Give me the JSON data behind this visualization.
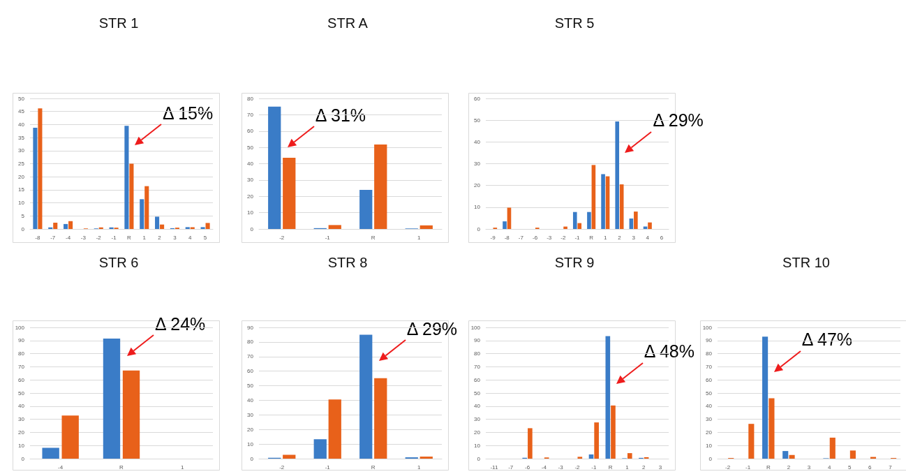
{
  "chart_data": [
    {
      "type": "bar",
      "title": "STR 1",
      "categories": [
        "-8",
        "-7",
        "-4",
        "-3",
        "-2",
        "-1",
        "R",
        "1",
        "2",
        "3",
        "4",
        "5"
      ],
      "series": [
        {
          "color": "#3a7cc7",
          "values": [
            38.8,
            0.6,
            1.9,
            0,
            0.2,
            0.6,
            39.5,
            11.4,
            4.7,
            0.3,
            0.7,
            0.7
          ]
        },
        {
          "color": "#e8611a",
          "values": [
            46.2,
            2.4,
            3.0,
            0.2,
            0.6,
            0.5,
            25,
            16.4,
            1.7,
            0.5,
            0.7,
            2.3
          ]
        }
      ],
      "ylim": [
        0,
        50
      ],
      "yticks": [
        0,
        5,
        10,
        15,
        20,
        25,
        30,
        35,
        40,
        45,
        50
      ],
      "grid": "y",
      "annotations": [
        {
          "text": "Δ 15%",
          "x": "R",
          "y": 32
        }
      ]
    },
    {
      "type": "bar",
      "title": "STR A",
      "categories": [
        "-2",
        "-1",
        "R",
        "1"
      ],
      "series": [
        {
          "color": "#3a7cc7",
          "values": [
            75,
            0.5,
            24,
            0.3
          ]
        },
        {
          "color": "#e8611a",
          "values": [
            43.6,
            2.4,
            51.8,
            2.2
          ]
        }
      ],
      "ylim": [
        0,
        80
      ],
      "yticks": [
        0,
        10,
        20,
        30,
        40,
        50,
        60,
        70,
        80
      ],
      "grid": "y",
      "annotations": [
        {
          "text": "Δ 31%",
          "x": "-2",
          "y": 50
        }
      ]
    },
    {
      "type": "bar",
      "title": "STR 5",
      "categories": [
        "-9",
        "-8",
        "-7",
        "-6",
        "-3",
        "-2",
        "-1",
        "R",
        "1",
        "2",
        "3",
        "4",
        "6"
      ],
      "series": [
        {
          "color": "#3a7cc7",
          "values": [
            0,
            3.5,
            0,
            0,
            0,
            0,
            7.8,
            7.8,
            25.2,
            49.4,
            4.8,
            1.1,
            0
          ]
        },
        {
          "color": "#e8611a",
          "values": [
            0.6,
            9.8,
            0,
            0.6,
            0,
            1.1,
            2.7,
            29.4,
            24.2,
            20.5,
            8,
            3,
            0
          ]
        }
      ],
      "ylim": [
        0,
        60
      ],
      "yticks": [
        0,
        10,
        20,
        30,
        40,
        50,
        60
      ],
      "grid": "y",
      "annotations": [
        {
          "text": "Δ 29%",
          "x": "2",
          "y": 35
        }
      ]
    },
    {
      "type": "bar",
      "title": "STR 6",
      "categories": [
        "-4",
        "R",
        "1"
      ],
      "series": [
        {
          "color": "#3a7cc7",
          "values": [
            8.3,
            91.5,
            0
          ]
        },
        {
          "color": "#e8611a",
          "values": [
            32.8,
            67.2,
            0
          ]
        }
      ],
      "ylim": [
        0,
        100
      ],
      "yticks": [
        0,
        10,
        20,
        30,
        40,
        50,
        60,
        70,
        80,
        90,
        100
      ],
      "grid": "y",
      "annotations": [
        {
          "text": "Δ 24%",
          "x": "R",
          "y": 78
        }
      ]
    },
    {
      "type": "bar",
      "title": "STR 8",
      "categories": [
        "-2",
        "-1",
        "R",
        "1"
      ],
      "series": [
        {
          "color": "#3a7cc7",
          "values": [
            0.6,
            13.3,
            85,
            0.9
          ]
        },
        {
          "color": "#e8611a",
          "values": [
            2.6,
            40.6,
            55.2,
            1.4
          ]
        }
      ],
      "ylim": [
        0,
        90
      ],
      "yticks": [
        0,
        10,
        20,
        30,
        40,
        50,
        60,
        70,
        80,
        90
      ],
      "grid": "y",
      "annotations": [
        {
          "text": "Δ 29%",
          "x": "R",
          "y": 67
        }
      ]
    },
    {
      "type": "bar",
      "title": "STR 9",
      "categories": [
        "-11",
        "-7",
        "-6",
        "-4",
        "-3",
        "-2",
        "-1",
        "R",
        "1",
        "2",
        "3"
      ],
      "series": [
        {
          "color": "#3a7cc7",
          "values": [
            0,
            0,
            0.6,
            0,
            0,
            0,
            3.2,
            93.4,
            0.3,
            0.6,
            0
          ]
        },
        {
          "color": "#e8611a",
          "values": [
            0,
            0,
            23.2,
            0.9,
            0,
            1.4,
            27.6,
            40.5,
            4.2,
            1.1,
            0
          ]
        }
      ],
      "ylim": [
        0,
        100
      ],
      "yticks": [
        0,
        10,
        20,
        30,
        40,
        50,
        60,
        70,
        80,
        90,
        100
      ],
      "grid": "y",
      "annotations": [
        {
          "text": "Δ 48%",
          "x": "R",
          "y": 57
        }
      ]
    },
    {
      "type": "bar",
      "title": "STR 10",
      "categories": [
        "-2",
        "-1",
        "R",
        "2",
        "3",
        "4",
        "5",
        "6",
        "7"
      ],
      "series": [
        {
          "color": "#3a7cc7",
          "values": [
            0,
            0,
            93,
            5.8,
            0,
            0.3,
            0,
            0,
            0
          ]
        },
        {
          "color": "#e8611a",
          "values": [
            0.5,
            26.5,
            46,
            2.8,
            0,
            16,
            6.2,
            1.3,
            0.5
          ]
        }
      ],
      "ylim": [
        0,
        100
      ],
      "yticks": [
        0,
        10,
        20,
        30,
        40,
        50,
        60,
        70,
        80,
        90,
        100
      ],
      "grid": "y",
      "annotations": [
        {
          "text": "Δ 47%",
          "x": "R",
          "y": 66
        }
      ]
    }
  ]
}
